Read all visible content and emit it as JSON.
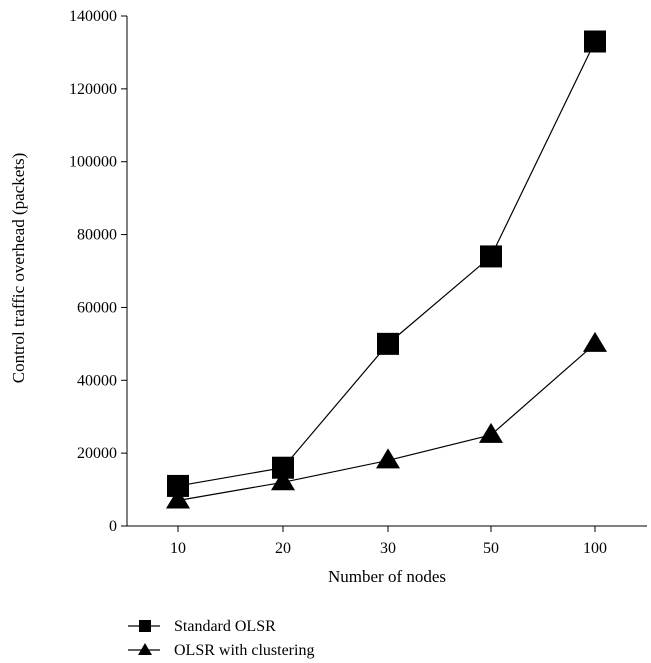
{
  "chart_data": {
    "type": "line",
    "categories": [
      "10",
      "20",
      "30",
      "50",
      "100"
    ],
    "series": [
      {
        "name": "Standard OLSR",
        "marker": "square",
        "values": [
          11000,
          16000,
          50000,
          74000,
          133000
        ]
      },
      {
        "name": "OLSR with clustering",
        "marker": "triangle",
        "values": [
          7000,
          12000,
          18000,
          25000,
          50000
        ]
      }
    ],
    "title": "",
    "xlabel": "Number of nodes",
    "ylabel": "Control traffic overhead (packets)",
    "ylim": [
      0,
      140000
    ],
    "yticks": [
      "0",
      "20000",
      "40000",
      "60000",
      "80000",
      "100000",
      "120000",
      "140000"
    ],
    "grid": false,
    "legend_position": "bottom-left",
    "colors": {
      "line": "#000000",
      "marker": "#000000"
    }
  }
}
